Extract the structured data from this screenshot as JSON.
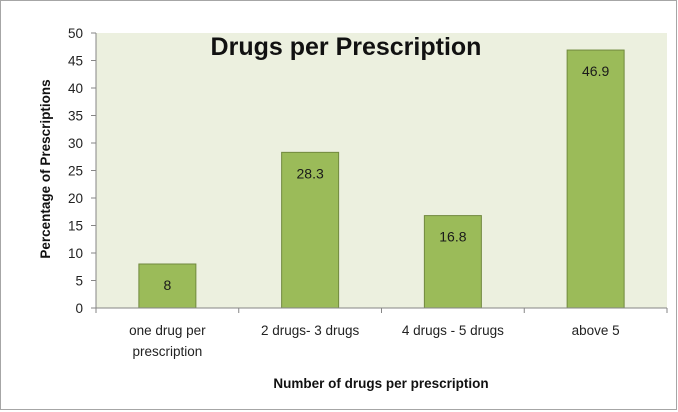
{
  "chart_data": {
    "type": "bar",
    "title": "Drugs per Prescription",
    "xlabel": "Number of drugs per prescription",
    "ylabel": "Percentage of Prescriptions",
    "categories": [
      [
        "one drug per",
        "prescription"
      ],
      [
        "2 drugs- 3 drugs"
      ],
      [
        "4 drugs - 5 drugs"
      ],
      [
        "above 5"
      ]
    ],
    "values": [
      8,
      28.3,
      16.8,
      46.9
    ],
    "data_labels": [
      "8",
      "28.3",
      "16.8",
      "46.9"
    ],
    "ylim": [
      0,
      50
    ],
    "yticks": [
      0,
      5,
      10,
      15,
      20,
      25,
      30,
      35,
      40,
      45,
      50
    ],
    "grid": false,
    "legend": "none",
    "colors": {
      "bar_fill": "#9bbb59",
      "bar_stroke": "#71893f",
      "plot_area": "#ecf0df",
      "axis": "#868686"
    }
  }
}
